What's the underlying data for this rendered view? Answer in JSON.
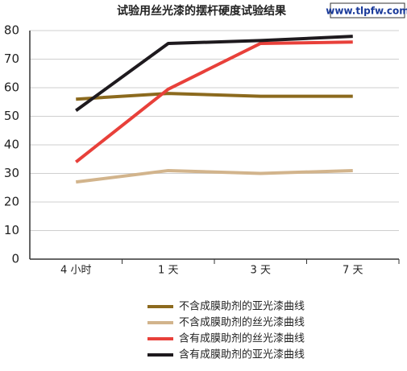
{
  "chart_data": {
    "type": "line",
    "title": "试验用丝光漆的摆杆硬度试验结果",
    "watermark": "www.tlpfw.com",
    "categories": [
      "4 小时",
      "1 天",
      "3 天",
      "7 天"
    ],
    "series": [
      {
        "name": "不含成膜助剂的亚光漆曲线",
        "color": "#8c6a1e",
        "values": [
          56,
          58,
          57,
          57
        ]
      },
      {
        "name": "不含成膜助剂的丝光漆曲线",
        "color": "#d2b48c",
        "values": [
          27,
          31,
          30,
          31
        ]
      },
      {
        "name": "含有成膜助剂的丝光漆曲线",
        "color": "#e8403a",
        "values": [
          34,
          59.5,
          75.5,
          76
        ]
      },
      {
        "name": "含有成膜助剂的亚光漆曲线",
        "color": "#1e1a1e",
        "values": [
          52,
          75.5,
          76.5,
          78
        ]
      }
    ],
    "ylim": [
      0,
      80
    ],
    "yticks": [
      0,
      10,
      20,
      30,
      40,
      50,
      60,
      70,
      80
    ],
    "grid": true
  }
}
